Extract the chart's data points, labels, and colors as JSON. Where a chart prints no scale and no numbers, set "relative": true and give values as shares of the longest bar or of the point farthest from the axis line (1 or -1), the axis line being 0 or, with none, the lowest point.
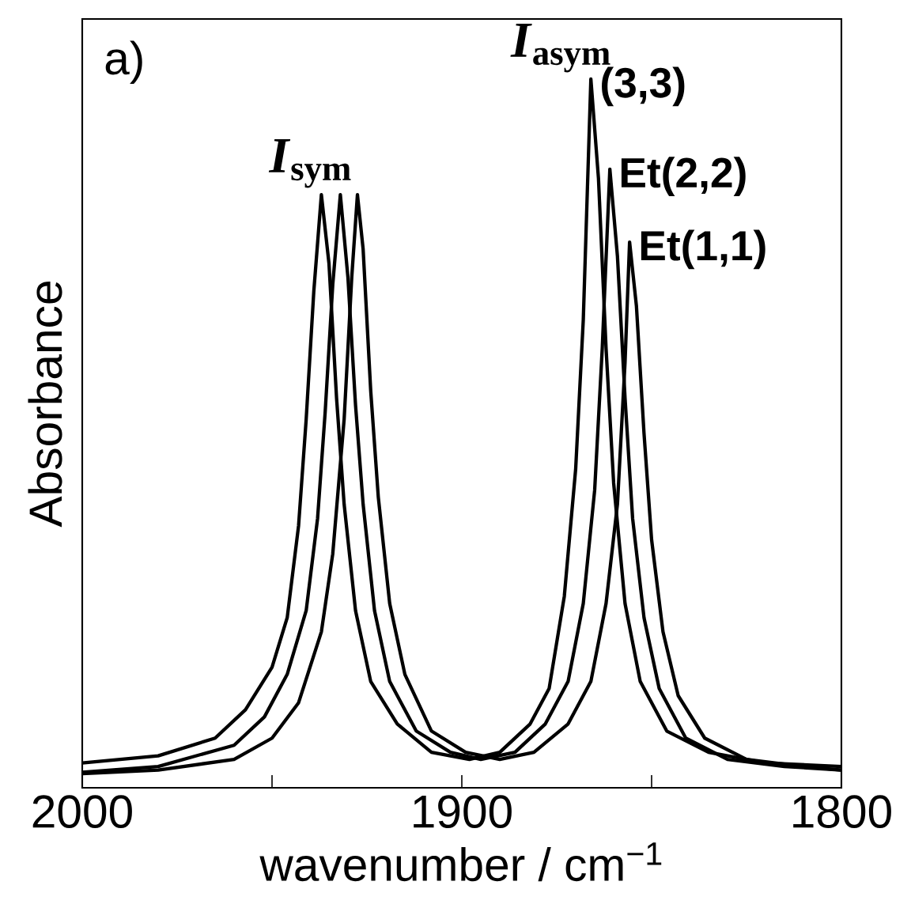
{
  "chart_data": {
    "type": "line",
    "xlabel": "wavenumber / cm$^{−1}$",
    "ylabel": "Absorbance",
    "relative": true,
    "xlim": [
      2000,
      1800
    ],
    "xticks": [
      2000,
      {
        "value": 1950,
        "label": null
      },
      1900,
      {
        "value": 1850,
        "label": null
      },
      1800
    ],
    "annotations": [
      "a)",
      {
        "text": "*I*$_{sym}$",
        "x": 1932,
        "y": 0.837
      },
      {
        "text": "*I*$_{asym}$",
        "x": 1866,
        "y": 1.0
      }
    ],
    "series": [
      {
        "name": "(3,3)",
        "color": "#000000",
        "x": [
          2000,
          1980,
          1965,
          1957,
          1950,
          1946,
          1943,
          1941,
          1939,
          1937,
          1935,
          1933,
          1931,
          1928,
          1924,
          1917,
          1908,
          1898,
          1890,
          1882,
          1877,
          1873,
          1870,
          1868,
          1866,
          1864,
          1862,
          1860,
          1857,
          1853,
          1846,
          1835,
          1820,
          1800
        ],
        "values": [
          0.035,
          0.045,
          0.07,
          0.11,
          0.17,
          0.24,
          0.37,
          0.52,
          0.7,
          0.837,
          0.74,
          0.55,
          0.4,
          0.25,
          0.15,
          0.09,
          0.05,
          0.04,
          0.05,
          0.09,
          0.14,
          0.27,
          0.45,
          0.66,
          1.0,
          0.86,
          0.62,
          0.43,
          0.26,
          0.15,
          0.08,
          0.05,
          0.035,
          0.03
        ]
      },
      {
        "name": "Et(2,2)",
        "color": "#000000",
        "x": [
          2000,
          1980,
          1960,
          1952,
          1946,
          1941,
          1938,
          1936,
          1934,
          1932,
          1930,
          1928,
          1926,
          1923,
          1919,
          1912,
          1903,
          1895,
          1886,
          1878,
          1872,
          1868,
          1865,
          1863,
          1861,
          1859,
          1857,
          1855,
          1852,
          1848,
          1841,
          1830,
          1815,
          1800
        ],
        "values": [
          0.022,
          0.03,
          0.06,
          0.1,
          0.16,
          0.25,
          0.38,
          0.53,
          0.71,
          0.837,
          0.72,
          0.54,
          0.4,
          0.25,
          0.15,
          0.08,
          0.05,
          0.04,
          0.05,
          0.09,
          0.15,
          0.26,
          0.42,
          0.62,
          0.873,
          0.75,
          0.55,
          0.38,
          0.24,
          0.14,
          0.07,
          0.04,
          0.03,
          0.025
        ]
      },
      {
        "name": "Et(1,1)",
        "color": "#000000",
        "x": [
          2000,
          1980,
          1960,
          1950,
          1943,
          1937,
          1934,
          1931,
          1929,
          1927.5,
          1926,
          1924,
          1922,
          1919,
          1915,
          1908,
          1899,
          1890,
          1881,
          1872,
          1866,
          1862,
          1859,
          1857,
          1855.8,
          1854,
          1852,
          1850,
          1847,
          1843,
          1836,
          1825,
          1810,
          1800
        ],
        "values": [
          0.02,
          0.025,
          0.04,
          0.07,
          0.12,
          0.22,
          0.33,
          0.52,
          0.72,
          0.837,
          0.76,
          0.56,
          0.41,
          0.26,
          0.16,
          0.08,
          0.05,
          0.04,
          0.05,
          0.09,
          0.15,
          0.26,
          0.4,
          0.6,
          0.77,
          0.68,
          0.5,
          0.35,
          0.22,
          0.13,
          0.07,
          0.04,
          0.03,
          0.025
        ]
      }
    ]
  }
}
